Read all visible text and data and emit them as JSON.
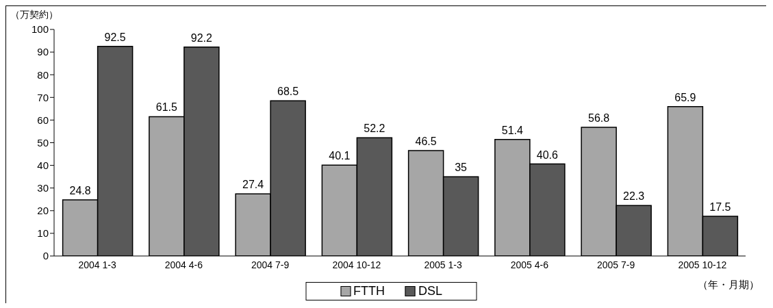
{
  "chart_data": {
    "type": "bar",
    "ylabel": "（万契約）",
    "xlabel": "（年・月期）",
    "categories": [
      "2004  1-3",
      "2004  4-6",
      "2004  7-9",
      "2004 10-12",
      "2005   1-3",
      "2005  4-6",
      "2005  7-9",
      "2005 10-12"
    ],
    "series": [
      {
        "name": "FTTH",
        "color": "#a6a6a6",
        "values": [
          24.8,
          61.5,
          27.4,
          40.1,
          46.5,
          51.4,
          56.8,
          65.9
        ]
      },
      {
        "name": "DSL",
        "color": "#595959",
        "values": [
          92.5,
          92.2,
          68.5,
          52.2,
          35,
          40.6,
          22.3,
          17.5
        ]
      }
    ],
    "ylim": [
      0,
      100
    ],
    "yticks": [
      0,
      10,
      20,
      30,
      40,
      50,
      60,
      70,
      80,
      90,
      100
    ],
    "data_labels": true,
    "legend": "bottom",
    "grid": false
  }
}
